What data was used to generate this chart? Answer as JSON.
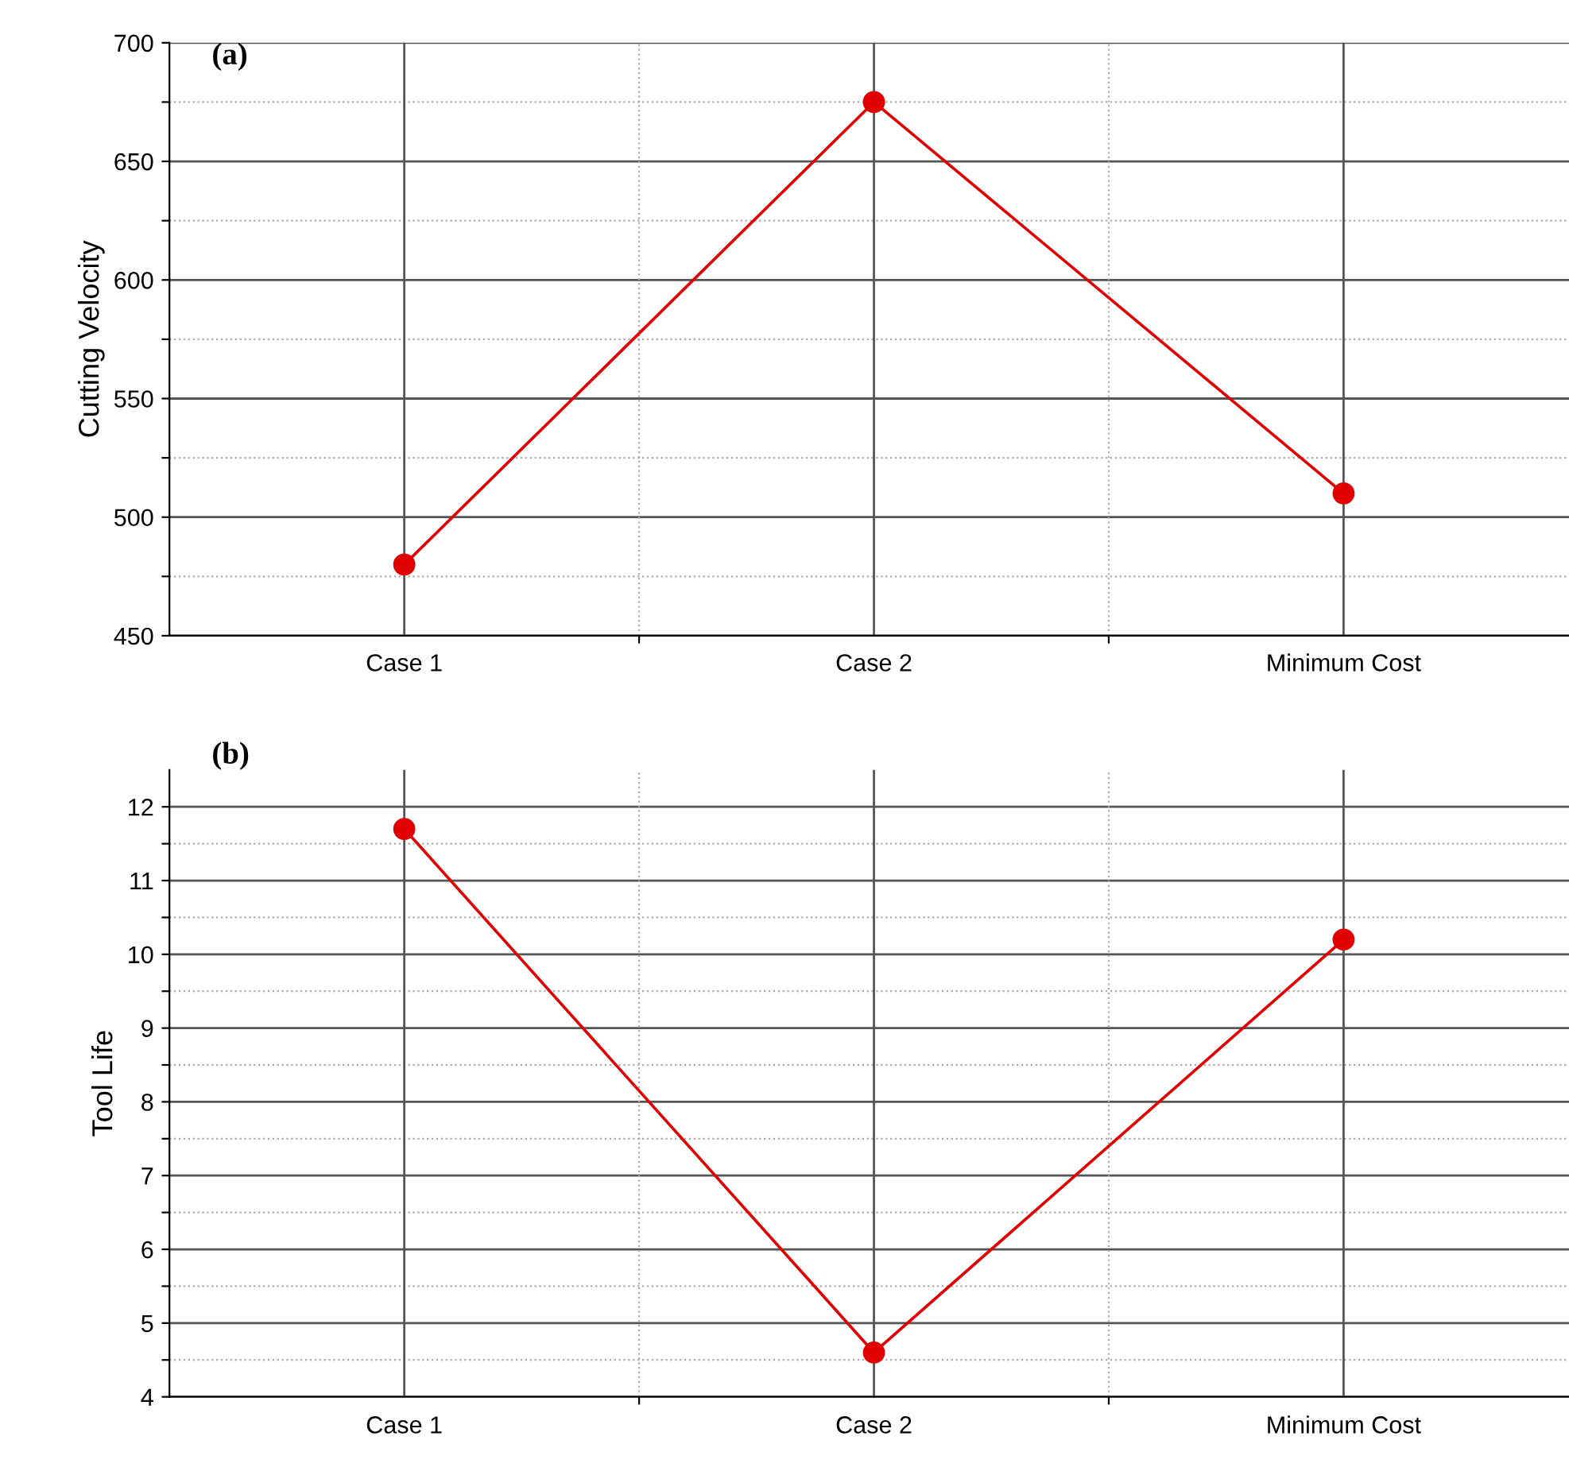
{
  "chart_data": [
    {
      "type": "line",
      "title": "(a)",
      "ylabel": "Cutting Velocity",
      "categories": [
        "Case 1",
        "Case 2",
        "Minimum Cost"
      ],
      "series": [
        {
          "color": "#e00000",
          "values": [
            480,
            675,
            510
          ]
        }
      ],
      "ylim": [
        450,
        700
      ],
      "yticks": [
        450,
        {
          "value": 475,
          "label": null
        },
        500,
        {
          "value": 525,
          "label": null
        },
        550,
        {
          "value": 575,
          "label": null
        },
        600,
        {
          "value": 625,
          "label": null
        },
        650,
        {
          "value": 675,
          "label": null
        },
        700
      ],
      "grid": true,
      "marker": "circle",
      "line_style": "solid"
    },
    {
      "type": "line",
      "title": "(b)",
      "ylabel": "Tool Life",
      "categories": [
        "Case 1",
        "Case 2",
        "Minimum Cost"
      ],
      "series": [
        {
          "color": "#e00000",
          "values": [
            11.7,
            4.6,
            10.2
          ]
        }
      ],
      "ylim": [
        4,
        12.5
      ],
      "yticks": [
        4,
        {
          "value": 4.5,
          "label": null
        },
        5,
        {
          "value": 5.5,
          "label": null
        },
        6,
        {
          "value": 6.5,
          "label": null
        },
        7,
        {
          "value": 7.5,
          "label": null
        },
        8,
        {
          "value": 8.5,
          "label": null
        },
        9,
        {
          "value": 9.5,
          "label": null
        },
        10,
        {
          "value": 10.5,
          "label": null
        },
        11,
        {
          "value": 11.5,
          "label": null
        },
        12
      ],
      "grid": true,
      "marker": "circle",
      "line_style": "solid"
    }
  ]
}
